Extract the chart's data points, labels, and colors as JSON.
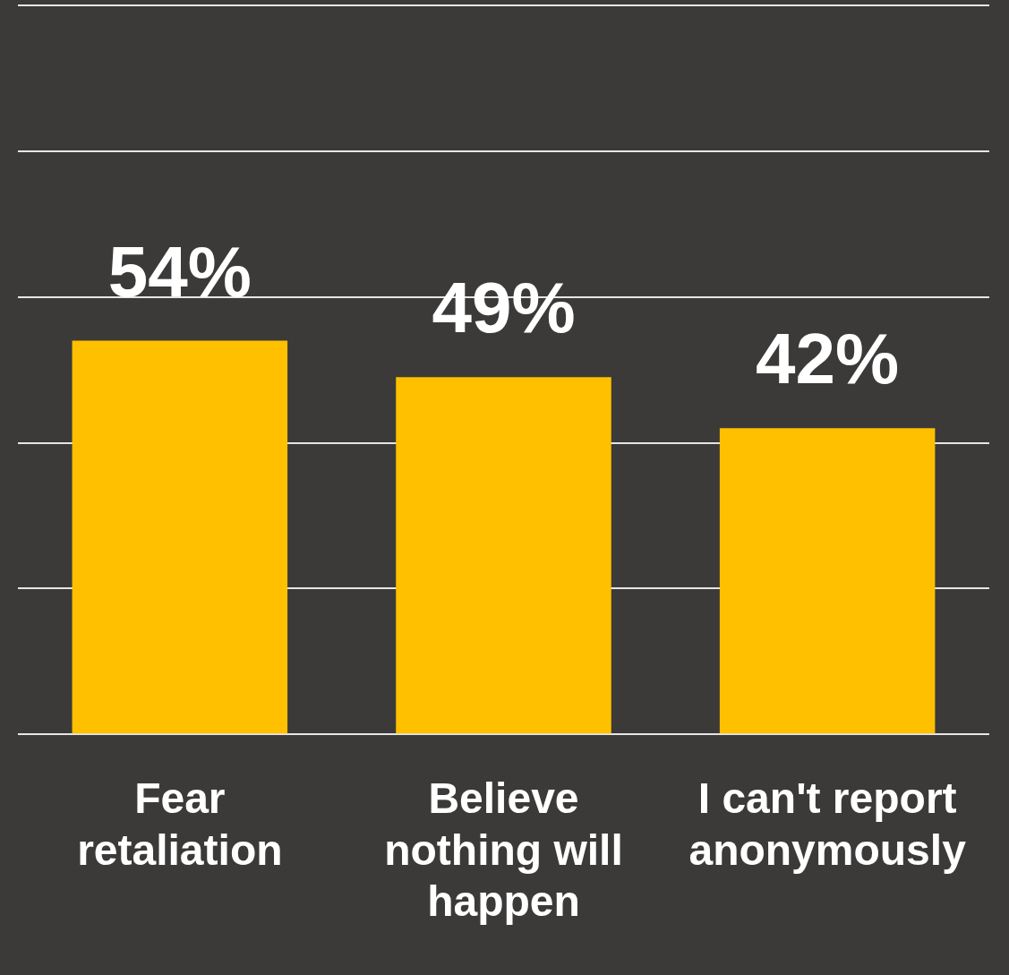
{
  "chart_data": {
    "type": "bar",
    "categories": [
      "Fear retaliation",
      "Believe nothing will happen",
      "I can't report anonymously"
    ],
    "values": [
      54,
      49,
      42
    ],
    "color": "#ffc000",
    "value_labels": [
      "54%",
      "49%",
      "42%"
    ],
    "ylim": [
      0,
      100
    ],
    "yticks": [
      0,
      20,
      40,
      60,
      80,
      100
    ],
    "grid": "y",
    "tick_labels": "x",
    "legend": false
  }
}
